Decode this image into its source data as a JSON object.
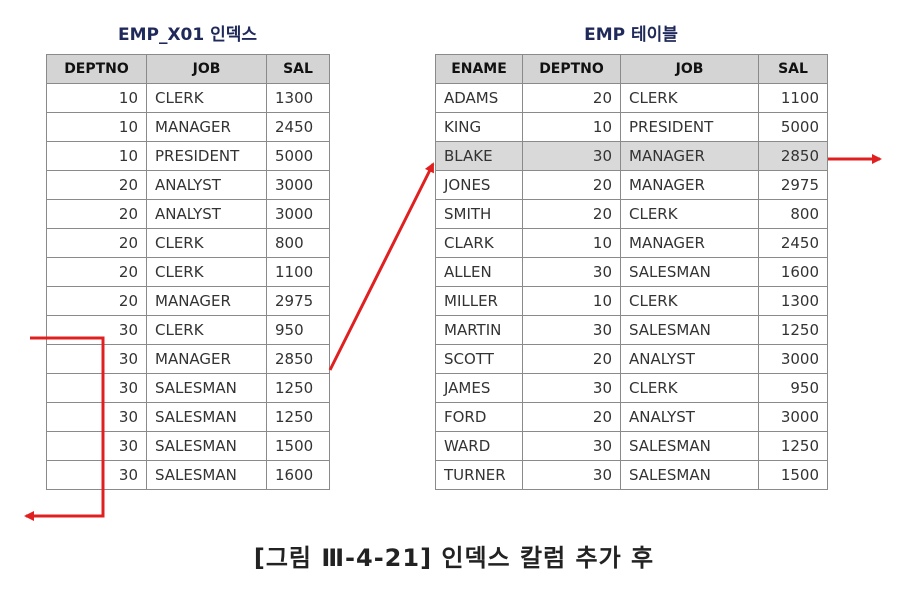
{
  "left_table": {
    "title": "EMP_X01 인덱스",
    "columns": [
      "DEPTNO",
      "JOB",
      "SAL"
    ],
    "rows": [
      [
        "10",
        "CLERK",
        "1300"
      ],
      [
        "10",
        "MANAGER",
        "2450"
      ],
      [
        "10",
        "PRESIDENT",
        "5000"
      ],
      [
        "20",
        "ANALYST",
        "3000"
      ],
      [
        "20",
        "ANALYST",
        "3000"
      ],
      [
        "20",
        "CLERK",
        "800"
      ],
      [
        "20",
        "CLERK",
        "1100"
      ],
      [
        "20",
        "MANAGER",
        "2975"
      ],
      [
        "30",
        "CLERK",
        "950"
      ],
      [
        "30",
        "MANAGER",
        "2850"
      ],
      [
        "30",
        "SALESMAN",
        "1250"
      ],
      [
        "30",
        "SALESMAN",
        "1250"
      ],
      [
        "30",
        "SALESMAN",
        "1500"
      ],
      [
        "30",
        "SALESMAN",
        "1600"
      ]
    ]
  },
  "right_table": {
    "title": "EMP 테이블",
    "columns": [
      "ENAME",
      "DEPTNO",
      "JOB",
      "SAL"
    ],
    "highlighted_row": 2,
    "rows": [
      [
        "ADAMS",
        "20",
        "CLERK",
        "1100"
      ],
      [
        "KING",
        "10",
        "PRESIDENT",
        "5000"
      ],
      [
        "BLAKE",
        "30",
        "MANAGER",
        "2850"
      ],
      [
        "JONES",
        "20",
        "MANAGER",
        "2975"
      ],
      [
        "SMITH",
        "20",
        "CLERK",
        "800"
      ],
      [
        "CLARK",
        "10",
        "MANAGER",
        "2450"
      ],
      [
        "ALLEN",
        "30",
        "SALESMAN",
        "1600"
      ],
      [
        "MILLER",
        "10",
        "CLERK",
        "1300"
      ],
      [
        "MARTIN",
        "30",
        "SALESMAN",
        "1250"
      ],
      [
        "SCOTT",
        "20",
        "ANALYST",
        "3000"
      ],
      [
        "JAMES",
        "30",
        "CLERK",
        "950"
      ],
      [
        "FORD",
        "20",
        "ANALYST",
        "3000"
      ],
      [
        "WARD",
        "30",
        "SALESMAN",
        "1250"
      ],
      [
        "TURNER",
        "30",
        "SALESMAN",
        "1500"
      ]
    ]
  },
  "caption": "[그림 Ⅲ-4-21] 인덱스 칼럼 추가 후",
  "colors": {
    "arrow": "#e02020",
    "header_bg": "#d4d4d4",
    "highlight_bg": "#d9d9d9",
    "title": "#1f2a5a"
  }
}
